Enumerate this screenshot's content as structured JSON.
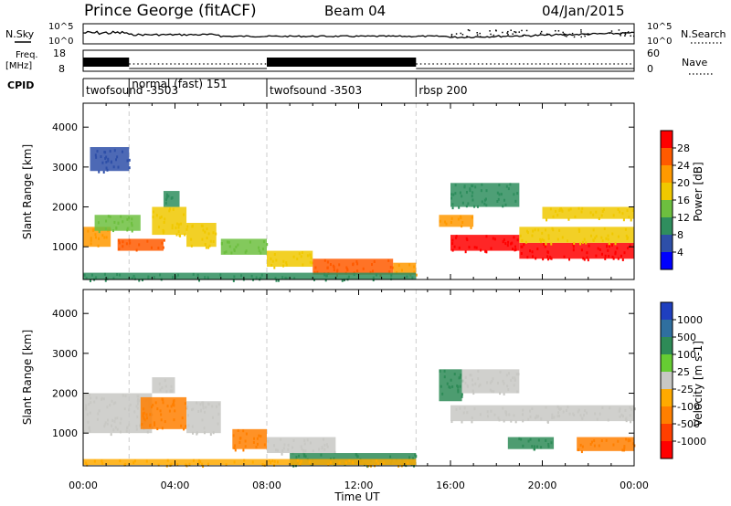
{
  "header": {
    "station": "Prince George (fitACF)",
    "beam": "Beam 04",
    "date": "04/Jan/2015"
  },
  "top_panels": {
    "nsky_label": "N.Sky",
    "nsearch_label": "N.Search",
    "nsky_ticks": [
      "10^5",
      "10^0"
    ],
    "nsearch_ticks": [
      "10^5",
      "10^0"
    ],
    "freq_label": "Freq.",
    "freq_unit": "[MHz]",
    "freq_ticks": [
      "18",
      "8"
    ],
    "nave_label": "Nave",
    "nave_ticks": [
      "60",
      "0"
    ],
    "cpid_label": "CPID",
    "cpid_segments": [
      {
        "label": "twofsound -3503",
        "start": 0.0,
        "end": 2.0
      },
      {
        "label": "normal (fast) 151",
        "start": 2.0,
        "end": 8.0
      },
      {
        "label": "twofsound -3503",
        "start": 8.0,
        "end": 14.5
      },
      {
        "label": "rbsp 200",
        "start": 14.5,
        "end": 24.0
      }
    ]
  },
  "colorbars": {
    "power": {
      "label": "Power [dB]",
      "ticks": [
        "28",
        "24",
        "20",
        "16",
        "12",
        "8",
        "4"
      ],
      "colors": [
        "#ff0000",
        "#ff5a00",
        "#ff9900",
        "#f0c800",
        "#6dbf3f",
        "#2f8e5e",
        "#2e4fa8",
        "#0000ff"
      ]
    },
    "velocity": {
      "label": "Velocity [m s-1]",
      "ticks": [
        "1000",
        "500",
        "100",
        "25",
        "-25",
        "-100",
        "-500",
        "-1000"
      ],
      "colors": [
        "#1f3fbf",
        "#2f6f9f",
        "#2e8b57",
        "#66cc33",
        "#c8c8c4",
        "#ffaa00",
        "#ff7f00",
        "#ff3f00",
        "#ff0000"
      ]
    }
  },
  "chart_data": [
    {
      "type": "heatmap",
      "name": "power",
      "xlabel": "Time UT",
      "ylabel": "Slant Range [km]",
      "xlim": [
        0,
        24
      ],
      "ylim": [
        180,
        4600
      ],
      "x_ticks": [
        "00:00",
        "04:00",
        "08:00",
        "12:00",
        "16:00",
        "20:00",
        "00:00"
      ],
      "y_ticks": [
        1000,
        2000,
        3000,
        4000
      ],
      "grid_vertical_lines": [
        2.0,
        8.0,
        14.5
      ],
      "bands": [
        {
          "t0": 0.0,
          "t1": 1.2,
          "r0": 1000,
          "r1": 1500,
          "level": 20
        },
        {
          "t0": 0.5,
          "t1": 2.5,
          "r0": 1400,
          "r1": 1800,
          "level": 12
        },
        {
          "t0": 1.5,
          "t1": 3.5,
          "r0": 900,
          "r1": 1200,
          "level": 24
        },
        {
          "t0": 3.0,
          "t1": 4.5,
          "r0": 1300,
          "r1": 2000,
          "level": 16
        },
        {
          "t0": 3.5,
          "t1": 4.2,
          "r0": 2000,
          "r1": 2400,
          "level": 8
        },
        {
          "t0": 4.5,
          "t1": 5.8,
          "r0": 1000,
          "r1": 1600,
          "level": 16
        },
        {
          "t0": 6.0,
          "t1": 8.0,
          "r0": 800,
          "r1": 1200,
          "level": 12
        },
        {
          "t0": 8.0,
          "t1": 10.0,
          "r0": 500,
          "r1": 900,
          "level": 16
        },
        {
          "t0": 10.0,
          "t1": 13.5,
          "r0": 300,
          "r1": 700,
          "level": 24
        },
        {
          "t0": 13.5,
          "t1": 14.5,
          "r0": 300,
          "r1": 600,
          "level": 20
        },
        {
          "t0": 15.5,
          "t1": 17.0,
          "r0": 1500,
          "r1": 1800,
          "level": 20
        },
        {
          "t0": 16.0,
          "t1": 19.0,
          "r0": 900,
          "r1": 1300,
          "level": 28
        },
        {
          "t0": 19.0,
          "t1": 24.0,
          "r0": 700,
          "r1": 1100,
          "level": 28
        },
        {
          "t0": 19.0,
          "t1": 24.0,
          "r0": 1100,
          "r1": 1500,
          "level": 16
        },
        {
          "t0": 20.0,
          "t1": 24.0,
          "r0": 1700,
          "r1": 2000,
          "level": 16
        },
        {
          "t0": 16.0,
          "t1": 19.0,
          "r0": 2000,
          "r1": 2600,
          "level": 8
        },
        {
          "t0": 0.3,
          "t1": 2.0,
          "r0": 2900,
          "r1": 3500,
          "level": 4
        },
        {
          "t0": 0.0,
          "t1": 14.5,
          "r0": 180,
          "r1": 350,
          "level": 8
        }
      ]
    },
    {
      "type": "heatmap",
      "name": "velocity",
      "xlabel": "Time UT",
      "ylabel": "Slant Range [km]",
      "xlim": [
        0,
        24
      ],
      "ylim": [
        180,
        4600
      ],
      "x_ticks": [
        "00:00",
        "04:00",
        "08:00",
        "12:00",
        "16:00",
        "20:00",
        "00:00"
      ],
      "y_ticks": [
        1000,
        2000,
        3000,
        4000
      ],
      "grid_vertical_lines": [
        2.0,
        8.0,
        14.5
      ],
      "bands": [
        {
          "t0": 0.0,
          "t1": 3.0,
          "r0": 1000,
          "r1": 2000,
          "level": 0
        },
        {
          "t0": 2.5,
          "t1": 4.5,
          "r0": 1100,
          "r1": 1900,
          "level": -500
        },
        {
          "t0": 3.0,
          "t1": 4.0,
          "r0": 2000,
          "r1": 2400,
          "level": 0
        },
        {
          "t0": 4.5,
          "t1": 6.0,
          "r0": 1000,
          "r1": 1800,
          "level": 0
        },
        {
          "t0": 6.5,
          "t1": 8.0,
          "r0": 600,
          "r1": 1100,
          "level": -500
        },
        {
          "t0": 8.0,
          "t1": 11.0,
          "r0": 500,
          "r1": 900,
          "level": 0
        },
        {
          "t0": 9.0,
          "t1": 14.5,
          "r0": 200,
          "r1": 500,
          "level": 100
        },
        {
          "t0": 15.5,
          "t1": 16.5,
          "r0": 1800,
          "r1": 2600,
          "level": 100
        },
        {
          "t0": 16.0,
          "t1": 24.0,
          "r0": 1300,
          "r1": 1700,
          "level": 0
        },
        {
          "t0": 16.5,
          "t1": 19.0,
          "r0": 2000,
          "r1": 2600,
          "level": 0
        },
        {
          "t0": 18.5,
          "t1": 20.5,
          "r0": 600,
          "r1": 900,
          "level": 100
        },
        {
          "t0": 21.5,
          "t1": 24.0,
          "r0": 550,
          "r1": 900,
          "level": -500
        },
        {
          "t0": 0.0,
          "t1": 14.5,
          "r0": 200,
          "r1": 350,
          "level": -100
        }
      ]
    }
  ]
}
